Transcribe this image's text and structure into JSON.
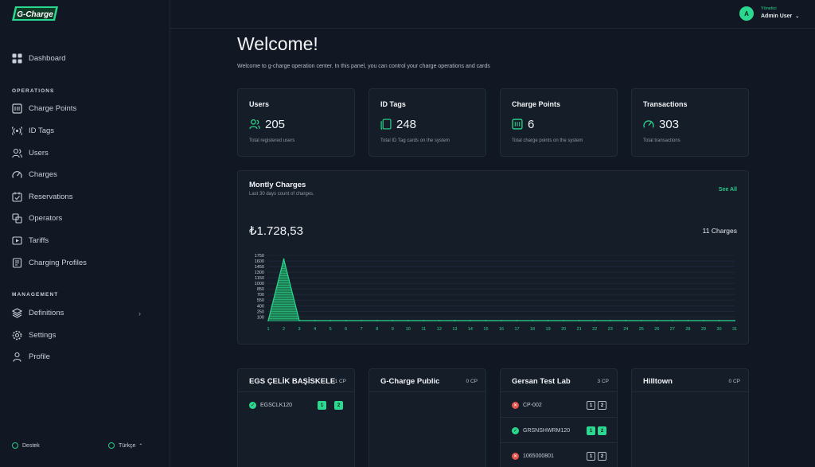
{
  "brand": {
    "logo_text": "G-Charge",
    "accent": "#2bd88f"
  },
  "sidebar": {
    "dashboard": {
      "label": "Dashboard",
      "icon": "grid-icon"
    },
    "operations_label": "OPERATIONS",
    "operations": [
      {
        "label": "Charge Points",
        "icon": "charge-point-icon"
      },
      {
        "label": "ID Tags",
        "icon": "rfid-icon"
      },
      {
        "label": "Users",
        "icon": "users-icon"
      },
      {
        "label": "Charges",
        "icon": "gauge-icon"
      },
      {
        "label": "Reservations",
        "icon": "calendar-check-icon"
      },
      {
        "label": "Operators",
        "icon": "operators-icon"
      },
      {
        "label": "Tariffs",
        "icon": "tariff-icon"
      },
      {
        "label": "Charging Profiles",
        "icon": "profile-doc-icon"
      }
    ],
    "management_label": "MANAGEMENT",
    "management": [
      {
        "label": "Definitions",
        "icon": "layers-icon"
      },
      {
        "label": "Settings",
        "icon": "gear-icon"
      },
      {
        "label": "Profile",
        "icon": "user-icon"
      }
    ],
    "footer": {
      "support": "Destek",
      "language": "Türkçe"
    }
  },
  "header": {
    "avatar_letter": "A",
    "user_role": "Yönetici",
    "user_name": "Admin User"
  },
  "main": {
    "title": "Welcome!",
    "subtitle": "Welcome to g-charge operation center. In this panel, you can control your charge operations and cards",
    "stats": [
      {
        "title": "Users",
        "value": "205",
        "desc": "Total registered users",
        "icon": "users-icon"
      },
      {
        "title": "ID Tags",
        "value": "248",
        "desc": "Total ID Tag cards on the system",
        "icon": "cards-icon"
      },
      {
        "title": "Charge Points",
        "value": "6",
        "desc": "Total charge points on the system",
        "icon": "charge-point-icon"
      },
      {
        "title": "Transactions",
        "value": "303",
        "desc": "Total transactions",
        "icon": "gauge-icon"
      }
    ],
    "chart_card": {
      "title": "Montly Charges",
      "subtitle": "Last 30 days count of charges.",
      "see_all": "See All",
      "total": "₺1.728,53",
      "count": "11 Charges"
    },
    "stations": [
      {
        "name": "EGS ÇELİK BAŞİSKELE",
        "cp": "1 CP",
        "points": [
          {
            "id": "EGSCLK120",
            "status": "ok",
            "connectors": [
              {
                "n": "1",
                "s": "avail"
              },
              {
                "n": "2",
                "s": "avail"
              }
            ]
          }
        ]
      },
      {
        "name": "G-Charge Public",
        "cp": "0 CP",
        "points": []
      },
      {
        "name": "Gersan Test Lab",
        "cp": "3 CP",
        "points": [
          {
            "id": "CP-002",
            "status": "err",
            "connectors": [
              {
                "n": "1",
                "s": "off"
              },
              {
                "n": "2",
                "s": "off"
              }
            ]
          },
          {
            "id": "GRSNSHWRM120",
            "status": "ok",
            "connectors": [
              {
                "n": "1",
                "s": "avail"
              },
              {
                "n": "2",
                "s": "avail"
              }
            ]
          },
          {
            "id": "1065000801",
            "status": "err",
            "connectors": [
              {
                "n": "1",
                "s": "off"
              },
              {
                "n": "2",
                "s": "off"
              }
            ]
          }
        ]
      },
      {
        "name": "Hilltown",
        "cp": "0 CP",
        "points": []
      }
    ]
  },
  "chart_data": {
    "type": "area",
    "title": "Montly Charges",
    "x": [
      1,
      2,
      3,
      4,
      5,
      6,
      7,
      8,
      9,
      10,
      11,
      12,
      13,
      14,
      15,
      16,
      17,
      18,
      19,
      20,
      21,
      22,
      23,
      24,
      25,
      26,
      27,
      28,
      29,
      30,
      31
    ],
    "values": [
      0,
      1650,
      0,
      0,
      0,
      0,
      0,
      0,
      0,
      0,
      0,
      0,
      0,
      0,
      0,
      0,
      0,
      0,
      0,
      0,
      0,
      0,
      0,
      0,
      0,
      0,
      0,
      0,
      0,
      0,
      0
    ],
    "yticks": [
      100,
      250,
      400,
      550,
      700,
      850,
      1000,
      1150,
      1300,
      1450,
      1600,
      1750
    ],
    "ylim": [
      0,
      1750
    ],
    "grid": true,
    "color": "#2bd88f"
  }
}
